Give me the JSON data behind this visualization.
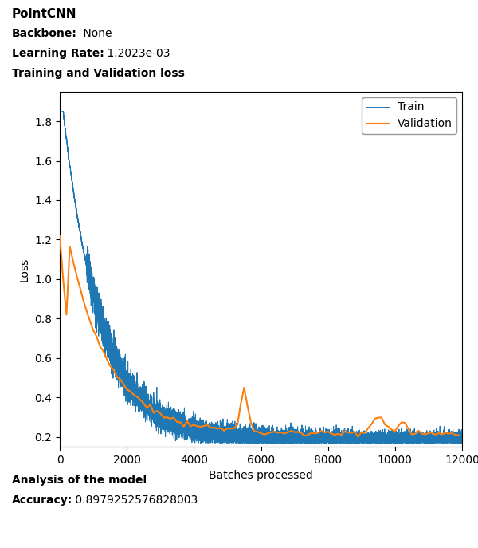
{
  "title": "PointCNN",
  "backbone_label": "Backbone:",
  "backbone_value": " None",
  "lr_label": "Learning Rate:",
  "lr_value": " 1.2023e-03",
  "section_label": "Training and Validation loss",
  "xlabel": "Batches processed",
  "ylabel": "Loss",
  "xlim": [
    0,
    12000
  ],
  "ylim_min": 0.15,
  "ylim_max": 1.95,
  "yticks": [
    0.2,
    0.4,
    0.6,
    0.8,
    1.0,
    1.2,
    1.4,
    1.6,
    1.8
  ],
  "xticks": [
    0,
    2000,
    4000,
    6000,
    8000,
    10000,
    12000
  ],
  "train_color": "#1f77b4",
  "val_color": "#ff7f0e",
  "legend_labels": [
    "Train",
    "Validation"
  ],
  "analysis_label": "Analysis of the model",
  "accuracy_label": "Accuracy:",
  "accuracy_value": " 0.8979252576828003",
  "n_train": 12000,
  "seed": 42,
  "fig_width": 6.0,
  "fig_height": 6.87,
  "dpi": 100
}
